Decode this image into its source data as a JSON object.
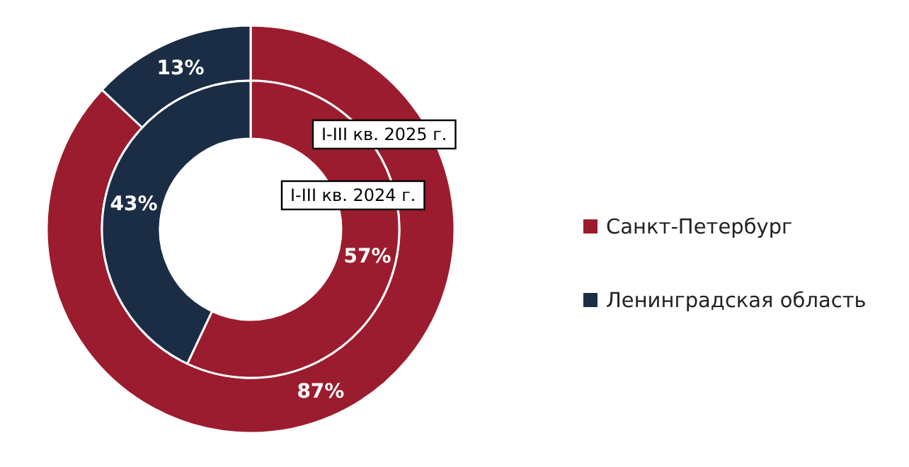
{
  "chart_data": {
    "type": "donut",
    "categories": [
      "Санкт-Петербург",
      "Ленинградская область"
    ],
    "colors": [
      "#9b1c2e",
      "#1b2d45"
    ],
    "series": [
      {
        "name": "I-III кв. 2025 г.",
        "values": [
          87,
          13
        ],
        "value_labels": [
          "87%",
          "13%"
        ]
      },
      {
        "name": "I-III кв. 2024 г.",
        "values": [
          57,
          43
        ],
        "value_labels": [
          "57%",
          "43%"
        ]
      }
    ],
    "legend": "right"
  }
}
